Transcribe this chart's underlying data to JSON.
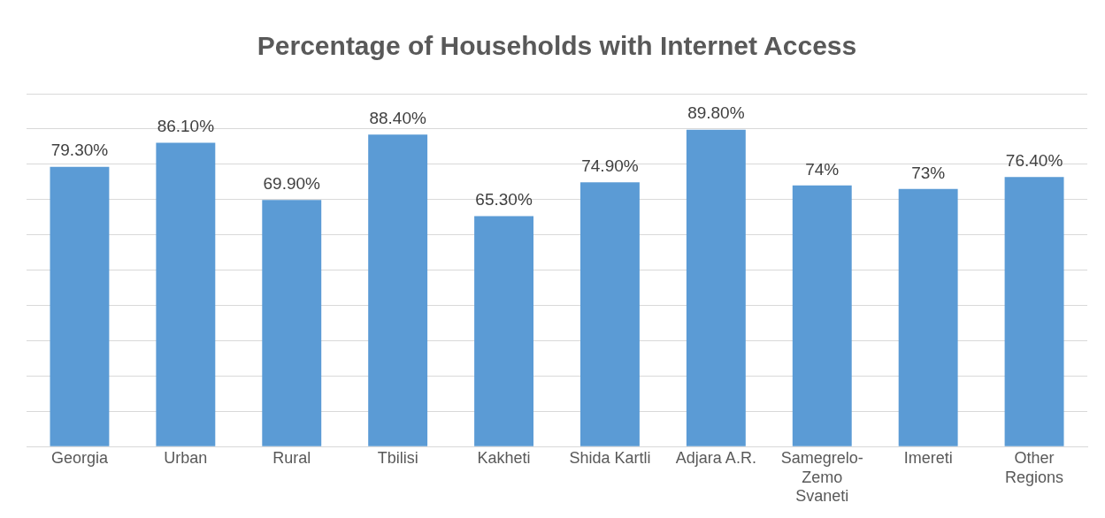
{
  "chart_data": {
    "type": "bar",
    "title": "Percentage of Households with Internet Access",
    "categories": [
      "Georgia",
      "Urban",
      "Rural",
      "Tbilisi",
      "Kakheti",
      "Shida Kartli",
      "Adjara A.R.",
      "Samegrelo-Zemo Svaneti",
      "Imereti",
      "Other Regions"
    ],
    "values": [
      79.3,
      86.1,
      69.9,
      88.4,
      65.3,
      74.9,
      89.8,
      74,
      73,
      76.4
    ],
    "value_labels": [
      "79.30%",
      "86.10%",
      "69.90%",
      "88.40%",
      "65.30%",
      "74.90%",
      "89.80%",
      "74%",
      "73%",
      "76.40%"
    ],
    "color": "#5b9bd5",
    "ylim": [
      0,
      100
    ],
    "yticks": [
      {
        "value": 0,
        "label": null
      },
      {
        "value": 10,
        "label": null
      },
      {
        "value": 20,
        "label": null
      },
      {
        "value": 30,
        "label": null
      },
      {
        "value": 40,
        "label": null
      },
      {
        "value": 50,
        "label": null
      },
      {
        "value": 60,
        "label": null
      },
      {
        "value": 70,
        "label": null
      },
      {
        "value": 80,
        "label": null
      },
      {
        "value": 90,
        "label": null
      },
      {
        "value": 100,
        "label": null
      }
    ],
    "tick_labels": "x",
    "grid": "y"
  }
}
